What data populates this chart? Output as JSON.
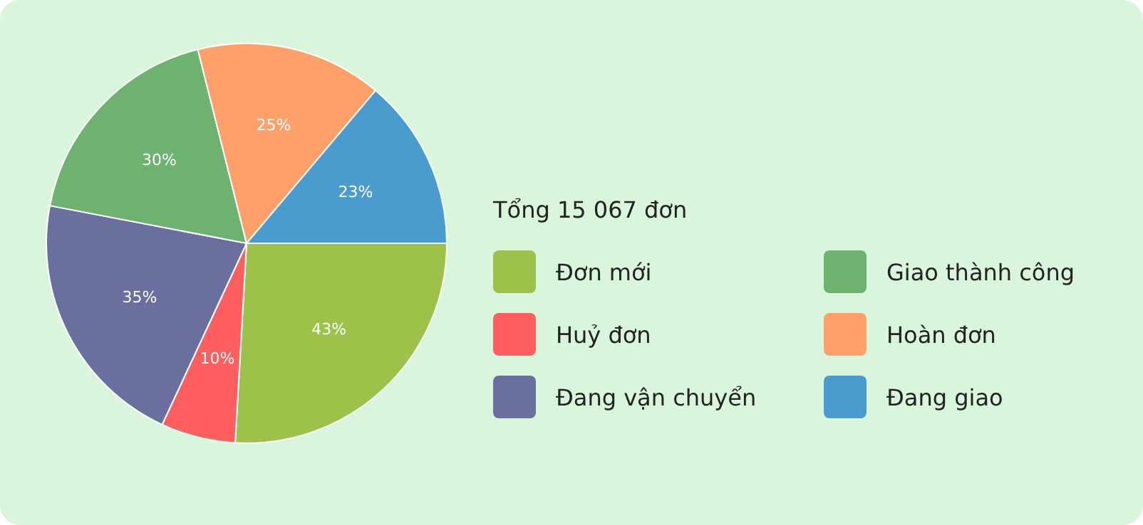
{
  "chart_data": {
    "type": "pie",
    "legend_title": "Tổng 15 067 đơn",
    "legend": "right",
    "categories": [
      "Đơn mới",
      "Huỷ đơn",
      "Đang vận chuyển",
      "Giao thành công",
      "Hoàn đơn",
      "Đang giao"
    ],
    "values": [
      43,
      10,
      35,
      30,
      25,
      23
    ],
    "value_labels": [
      "43%",
      "10%",
      "35%",
      "30%",
      "25%",
      "23%"
    ],
    "colors": [
      "#9dc24a",
      "#ff5e5e",
      "#6b6f9e",
      "#6db36f",
      "#ffa06a",
      "#4a9ccf"
    ]
  }
}
